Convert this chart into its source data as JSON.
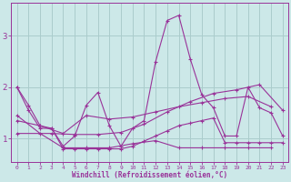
{
  "xlabel": "Windchill (Refroidissement éolien,°C)",
  "xlim": [
    -0.5,
    23.5
  ],
  "ylim": [
    0.55,
    3.65
  ],
  "yticks": [
    1,
    2,
    3
  ],
  "xticks": [
    0,
    1,
    2,
    3,
    4,
    5,
    6,
    7,
    8,
    9,
    10,
    11,
    12,
    13,
    14,
    15,
    16,
    17,
    18,
    19,
    20,
    21,
    22,
    23
  ],
  "bg_color": "#cce8e8",
  "grid_color": "#aacccc",
  "line_color": "#993399",
  "figsize": [
    3.2,
    2.0
  ],
  "dpi": 100,
  "lines": [
    {
      "x": [
        0,
        1,
        2,
        3,
        4,
        5,
        6,
        7,
        8,
        9,
        10,
        11,
        12,
        13,
        14,
        15,
        16,
        17,
        18,
        19,
        20,
        21,
        22,
        23
      ],
      "y": [
        2.0,
        1.65,
        1.25,
        1.2,
        0.85,
        1.05,
        1.65,
        1.9,
        1.25,
        0.85,
        1.2,
        1.35,
        2.5,
        3.3,
        3.4,
        2.55,
        1.85,
        1.6,
        1.05,
        1.05,
        2.0,
        1.6,
        1.5,
        1.05
      ]
    },
    {
      "x": [
        0,
        1,
        2,
        3,
        4,
        5,
        6,
        7,
        8,
        9,
        10,
        11,
        12,
        13,
        14,
        15,
        16,
        17,
        18,
        19,
        20,
        21,
        22,
        23
      ],
      "y": [
        2.0,
        1.55,
        1.2,
        1.2,
        0.8,
        0.8,
        0.8,
        0.8,
        0.8,
        0.8,
        0.85,
        0.95,
        1.05,
        1.15,
        1.25,
        1.3,
        1.35,
        1.4,
        0.92,
        0.92,
        0.92,
        0.92,
        0.92,
        0.92
      ]
    },
    {
      "x": [
        0,
        2,
        4,
        6,
        8,
        10,
        12,
        14,
        16,
        18,
        20,
        22
      ],
      "y": [
        1.35,
        1.25,
        1.1,
        1.45,
        1.38,
        1.42,
        1.52,
        1.62,
        1.7,
        1.78,
        1.82,
        1.62
      ]
    },
    {
      "x": [
        0,
        3,
        5,
        7,
        9,
        11,
        13,
        15,
        17,
        19,
        21,
        23
      ],
      "y": [
        1.1,
        1.1,
        1.08,
        1.08,
        1.12,
        1.28,
        1.52,
        1.72,
        1.88,
        1.95,
        2.05,
        1.55
      ]
    },
    {
      "x": [
        0,
        2,
        4,
        6,
        8,
        10,
        12,
        14,
        16,
        18,
        20,
        22
      ],
      "y": [
        1.45,
        1.1,
        0.82,
        0.82,
        0.82,
        0.9,
        0.96,
        0.82,
        0.82,
        0.82,
        0.82,
        0.82
      ]
    }
  ]
}
